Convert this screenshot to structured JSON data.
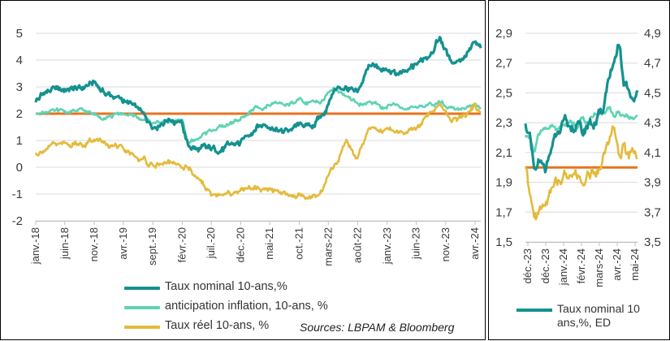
{
  "colors": {
    "nominal": "#14928f",
    "inflation": "#5fd3b4",
    "real": "#e3bb3c",
    "reference": "#e7731f",
    "grid": "#d9d9d9",
    "axis": "#bfbfbf"
  },
  "left_chart": {
    "y_ticks": [
      "5",
      "4",
      "3",
      "2",
      "1",
      "0",
      "-1",
      "-2"
    ],
    "x_ticks": [
      "janv.-18",
      "juin-18",
      "nov.-18",
      "avr.-19",
      "sept.-19",
      "févr.-20",
      "juil.-20",
      "déc.-20",
      "mai-21",
      "oct.-21",
      "mars-22",
      "août-22",
      "janv.-23",
      "juin-23",
      "nov.-23",
      "avr.-24"
    ],
    "legend": [
      {
        "label": "Taux nominal 10-ans,%",
        "color_key": "nominal"
      },
      {
        "label": "anticipation inflation, 10-ans, %",
        "color_key": "inflation"
      },
      {
        "label": "Taux réel 10-ans, %",
        "color_key": "real"
      }
    ],
    "source": "Sources: LBPAM & Bloomberg"
  },
  "right_chart": {
    "left_ticks": [
      "2,9",
      "2,7",
      "2,5",
      "2,3",
      "2,1",
      "1,9",
      "1,7",
      "1,5"
    ],
    "right_ticks": [
      "4,9",
      "4,7",
      "4,5",
      "4,3",
      "4,1",
      "3,9",
      "3,7",
      "3,5"
    ],
    "x_ticks": [
      "déc.-23",
      "déc.-23",
      "janv.-24",
      "févr.-24",
      "mars-24",
      "avr.-24",
      "mai-24"
    ],
    "legend": [
      {
        "label": "Taux nominal 10 ans,%, ED",
        "color_key": "nominal"
      }
    ]
  },
  "chart_data": [
    {
      "type": "line",
      "title": "",
      "xlabel": "",
      "ylabel": "",
      "ylim": [
        -2,
        5
      ],
      "grid": true,
      "legend_position": "bottom",
      "x": [
        "2018-01",
        "2018-03",
        "2018-06",
        "2018-09",
        "2018-11",
        "2019-01",
        "2019-04",
        "2019-07",
        "2019-09",
        "2019-12",
        "2020-02",
        "2020-03",
        "2020-05",
        "2020-07",
        "2020-09",
        "2020-12",
        "2021-03",
        "2021-05",
        "2021-07",
        "2021-10",
        "2021-12",
        "2022-02",
        "2022-04",
        "2022-06",
        "2022-08",
        "2022-10",
        "2022-12",
        "2023-02",
        "2023-04",
        "2023-06",
        "2023-08",
        "2023-10",
        "2023-12",
        "2024-02",
        "2024-04",
        "2024-05"
      ],
      "series": [
        {
          "name": "Taux nominal 10-ans,%",
          "color_key": "nominal",
          "values": [
            2.5,
            2.85,
            2.9,
            2.95,
            3.15,
            2.75,
            2.5,
            2.05,
            1.55,
            1.85,
            1.6,
            0.8,
            0.65,
            0.65,
            0.7,
            0.9,
            1.6,
            1.6,
            1.3,
            1.55,
            1.5,
            1.95,
            2.9,
            3.0,
            2.65,
            3.9,
            3.6,
            3.5,
            3.45,
            3.8,
            4.2,
            4.85,
            3.9,
            4.15,
            4.6,
            4.4
          ]
        },
        {
          "name": "anticipation inflation, 10-ans, %",
          "color_key": "inflation",
          "values": [
            2.0,
            2.1,
            2.05,
            2.1,
            1.95,
            1.9,
            2.0,
            1.8,
            1.65,
            1.75,
            1.7,
            0.9,
            1.1,
            1.4,
            1.5,
            1.8,
            2.25,
            2.35,
            2.3,
            2.45,
            2.35,
            2.55,
            2.95,
            2.65,
            2.3,
            2.4,
            2.25,
            2.3,
            2.2,
            2.3,
            2.3,
            2.4,
            2.2,
            2.25,
            2.35,
            2.3
          ]
        },
        {
          "name": "Taux réel 10-ans, %",
          "color_key": "real",
          "values": [
            0.5,
            0.75,
            0.85,
            0.9,
            1.1,
            0.85,
            0.6,
            0.25,
            0.1,
            0.15,
            -0.05,
            0.0,
            -0.5,
            -1.0,
            -0.95,
            -0.85,
            -0.8,
            -0.8,
            -1.0,
            -1.05,
            -1.1,
            -0.9,
            0.05,
            0.85,
            0.4,
            1.5,
            1.35,
            1.3,
            1.35,
            1.45,
            1.85,
            2.45,
            1.7,
            1.9,
            2.3,
            2.15
          ]
        },
        {
          "name": "",
          "color_key": "reference",
          "values": [
            2,
            2,
            2,
            2,
            2,
            2,
            2,
            2,
            2,
            2,
            2,
            2,
            2,
            2,
            2,
            2,
            2,
            2,
            2,
            2,
            2,
            2,
            2,
            2,
            2,
            2,
            2,
            2,
            2,
            2,
            2,
            2,
            2,
            2,
            2,
            2
          ]
        }
      ]
    },
    {
      "type": "line",
      "title": "",
      "xlabel": "",
      "ylabel": "",
      "ylim": [
        1.5,
        2.9
      ],
      "ylim_secondary": [
        3.5,
        4.9
      ],
      "grid": true,
      "legend_position": "bottom",
      "x": [
        "2023-12-01",
        "2023-12-08",
        "2023-12-15",
        "2023-12-22",
        "2024-01-01",
        "2024-01-10",
        "2024-01-20",
        "2024-02-01",
        "2024-02-10",
        "2024-02-20",
        "2024-03-01",
        "2024-03-10",
        "2024-03-20",
        "2024-04-01",
        "2024-04-10",
        "2024-04-20",
        "2024-04-28",
        "2024-05-05",
        "2024-05-12",
        "2024-05-20",
        "2024-05-27"
      ],
      "series": [
        {
          "name": "Taux nominal 10 ans,%, ED",
          "axis": "secondary",
          "color_key": "nominal",
          "values": [
            4.28,
            4.2,
            3.95,
            4.0,
            4.0,
            4.12,
            4.2,
            4.28,
            4.25,
            4.3,
            4.22,
            4.3,
            4.3,
            4.35,
            4.6,
            4.7,
            4.78,
            4.55,
            4.5,
            4.46,
            4.5
          ]
        },
        {
          "name": "",
          "axis": "primary",
          "color_key": "inflation",
          "values": [
            2.2,
            2.2,
            2.1,
            2.22,
            2.25,
            2.28,
            2.25,
            2.3,
            2.32,
            2.28,
            2.33,
            2.3,
            2.35,
            2.36,
            2.4,
            2.35,
            2.38,
            2.35,
            2.35,
            2.32,
            2.33
          ]
        },
        {
          "name": "",
          "axis": "primary",
          "color_key": "real",
          "values": [
            2.0,
            1.82,
            1.66,
            1.7,
            1.75,
            1.85,
            1.9,
            1.95,
            1.92,
            1.97,
            1.9,
            1.98,
            1.96,
            2.05,
            2.2,
            2.25,
            2.1,
            2.15,
            2.08,
            2.12,
            2.08
          ]
        },
        {
          "name": "",
          "axis": "primary",
          "color_key": "reference",
          "values": [
            2,
            2,
            2,
            2,
            2,
            2,
            2,
            2,
            2,
            2,
            2,
            2,
            2,
            2,
            2,
            2,
            2,
            2,
            2,
            2,
            2
          ]
        }
      ]
    }
  ]
}
